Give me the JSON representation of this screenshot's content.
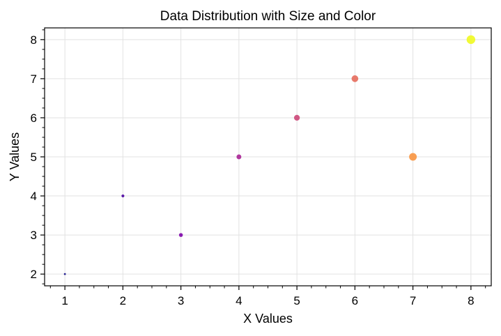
{
  "chart_data": {
    "type": "scatter",
    "title": "Data Distribution with Size and Color",
    "xlabel": "X Values",
    "ylabel": "Y Values",
    "xlim": [
      0.65,
      8.35
    ],
    "ylim": [
      1.7,
      8.3
    ],
    "xticks": [
      1,
      2,
      3,
      4,
      5,
      6,
      7,
      8
    ],
    "yticks": [
      2,
      3,
      4,
      5,
      6,
      7,
      8
    ],
    "x_minor_step": 0.25,
    "y_minor_step": 0.25,
    "grid": true,
    "colormap": "plasma",
    "series": [
      {
        "points": [
          {
            "x": 1,
            "y": 2,
            "color": "#0d0887"
          },
          {
            "x": 2,
            "y": 4,
            "color": "#4b03a1"
          },
          {
            "x": 3,
            "y": 3,
            "color": "#7d03a8"
          },
          {
            "x": 4,
            "y": 5,
            "color": "#a92395"
          },
          {
            "x": 5,
            "y": 6,
            "color": "#cc4778"
          },
          {
            "x": 6,
            "y": 7,
            "color": "#e66c5c"
          },
          {
            "x": 7,
            "y": 5,
            "color": "#f89540"
          },
          {
            "x": 8,
            "y": 8,
            "color": "#f0f921"
          }
        ]
      }
    ]
  }
}
